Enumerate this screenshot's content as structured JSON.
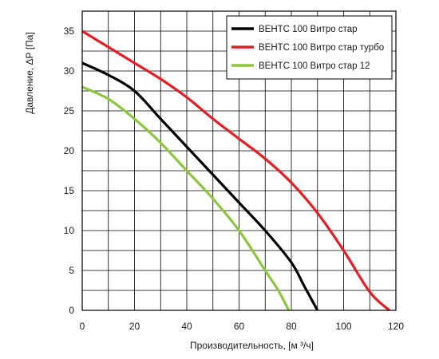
{
  "chart_data": {
    "type": "line",
    "xlabel": "Производительность, [м ³/ч]",
    "ylabel": "Давление, ΔР [Па]",
    "xlim": [
      0,
      120
    ],
    "ylim": [
      0,
      37.5
    ],
    "x_ticks": [
      0,
      20,
      40,
      60,
      80,
      100,
      120
    ],
    "y_ticks": [
      0,
      5,
      10,
      15,
      20,
      25,
      30,
      35
    ],
    "x_tick_labels": [
      "0",
      "20",
      "40",
      "60",
      "80",
      "100",
      "120"
    ],
    "y_tick_labels": [
      "0",
      "5",
      "10",
      "15",
      "20",
      "25",
      "30",
      "35"
    ],
    "grid": true,
    "grid_x_step": 10,
    "grid_y_step": 2.5,
    "legend_position": "top-right",
    "series": [
      {
        "name": "ВЕНТС 100 Витро стар",
        "color": "#000000",
        "points": [
          [
            0,
            31
          ],
          [
            10,
            29.5
          ],
          [
            20,
            27.5
          ],
          [
            30,
            24
          ],
          [
            40,
            20.5
          ],
          [
            50,
            17
          ],
          [
            60,
            13.5
          ],
          [
            70,
            10
          ],
          [
            80,
            6
          ],
          [
            85,
            3
          ],
          [
            90,
            0
          ]
        ]
      },
      {
        "name": "ВЕНТС 100 Витро стар турбо",
        "color": "#e31e24",
        "points": [
          [
            0,
            35
          ],
          [
            10,
            33
          ],
          [
            20,
            31
          ],
          [
            30,
            29
          ],
          [
            40,
            26.7
          ],
          [
            50,
            24
          ],
          [
            60,
            21.5
          ],
          [
            70,
            19
          ],
          [
            80,
            16
          ],
          [
            90,
            12.2
          ],
          [
            100,
            7.5
          ],
          [
            110,
            2.3
          ],
          [
            117.5,
            0
          ]
        ]
      },
      {
        "name": "ВЕНТС 100 Витро стар 12",
        "color": "#8dc63f",
        "points": [
          [
            0,
            28
          ],
          [
            10,
            26.5
          ],
          [
            20,
            24
          ],
          [
            30,
            21
          ],
          [
            40,
            17.5
          ],
          [
            50,
            14
          ],
          [
            60,
            10
          ],
          [
            70,
            5
          ],
          [
            75,
            2.5
          ],
          [
            79,
            0
          ]
        ]
      }
    ]
  }
}
